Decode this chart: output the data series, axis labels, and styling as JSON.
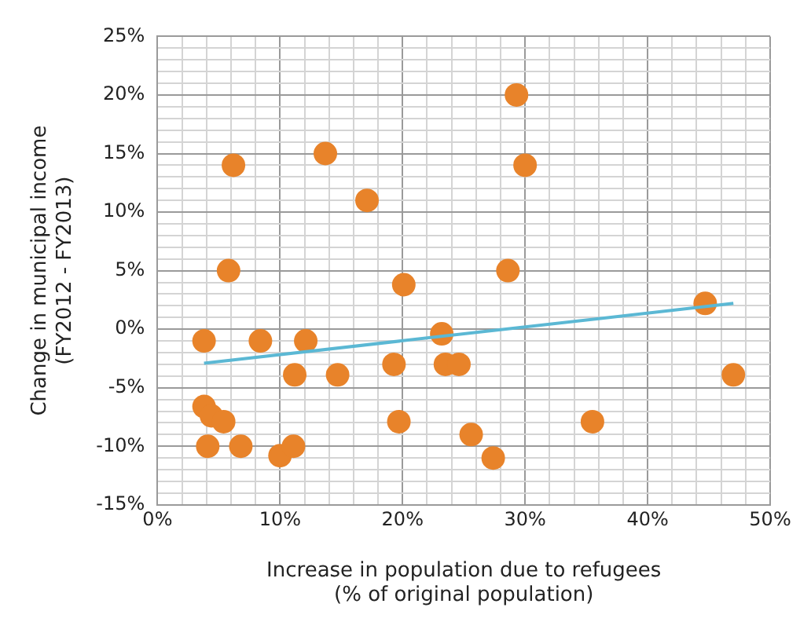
{
  "chart_data": {
    "type": "scatter",
    "xlabel": "Increase in population due to refugees\n(% of original population)",
    "ylabel": "Change in municipal income\n(FY2012 - FY2013)",
    "xlim": [
      0,
      50
    ],
    "ylim": [
      -15,
      25
    ],
    "xticks": [
      {
        "value": 0,
        "label": "0%"
      },
      {
        "value": 2,
        "label": null
      },
      {
        "value": 4,
        "label": null
      },
      {
        "value": 6,
        "label": null
      },
      {
        "value": 8,
        "label": null
      },
      {
        "value": 10,
        "label": "10%"
      },
      {
        "value": 12,
        "label": null
      },
      {
        "value": 14,
        "label": null
      },
      {
        "value": 16,
        "label": null
      },
      {
        "value": 18,
        "label": null
      },
      {
        "value": 20,
        "label": "20%"
      },
      {
        "value": 22,
        "label": null
      },
      {
        "value": 24,
        "label": null
      },
      {
        "value": 26,
        "label": null
      },
      {
        "value": 28,
        "label": null
      },
      {
        "value": 30,
        "label": "30%"
      },
      {
        "value": 32,
        "label": null
      },
      {
        "value": 34,
        "label": null
      },
      {
        "value": 36,
        "label": null
      },
      {
        "value": 38,
        "label": null
      },
      {
        "value": 40,
        "label": "40%"
      },
      {
        "value": 42,
        "label": null
      },
      {
        "value": 44,
        "label": null
      },
      {
        "value": 46,
        "label": null
      },
      {
        "value": 48,
        "label": null
      },
      {
        "value": 50,
        "label": "50%"
      }
    ],
    "yticks": [
      {
        "value": -15,
        "label": "-15%"
      },
      {
        "value": -14,
        "label": null
      },
      {
        "value": -13,
        "label": null
      },
      {
        "value": -12,
        "label": null
      },
      {
        "value": -11,
        "label": null
      },
      {
        "value": -10,
        "label": "-10%"
      },
      {
        "value": -9,
        "label": null
      },
      {
        "value": -8,
        "label": null
      },
      {
        "value": -7,
        "label": null
      },
      {
        "value": -6,
        "label": null
      },
      {
        "value": -5,
        "label": "-5%"
      },
      {
        "value": -4,
        "label": null
      },
      {
        "value": -3,
        "label": null
      },
      {
        "value": -2,
        "label": null
      },
      {
        "value": -1,
        "label": null
      },
      {
        "value": 0,
        "label": "0%"
      },
      {
        "value": 1,
        "label": null
      },
      {
        "value": 2,
        "label": null
      },
      {
        "value": 3,
        "label": null
      },
      {
        "value": 4,
        "label": null
      },
      {
        "value": 5,
        "label": "5%"
      },
      {
        "value": 6,
        "label": null
      },
      {
        "value": 7,
        "label": null
      },
      {
        "value": 8,
        "label": null
      },
      {
        "value": 9,
        "label": null
      },
      {
        "value": 10,
        "label": "10%"
      },
      {
        "value": 11,
        "label": null
      },
      {
        "value": 12,
        "label": null
      },
      {
        "value": 13,
        "label": null
      },
      {
        "value": 14,
        "label": null
      },
      {
        "value": 15,
        "label": "15%"
      },
      {
        "value": 16,
        "label": null
      },
      {
        "value": 17,
        "label": null
      },
      {
        "value": 18,
        "label": null
      },
      {
        "value": 19,
        "label": null
      },
      {
        "value": 20,
        "label": "20%"
      },
      {
        "value": 21,
        "label": null
      },
      {
        "value": 22,
        "label": null
      },
      {
        "value": 23,
        "label": null
      },
      {
        "value": 24,
        "label": null
      },
      {
        "value": 25,
        "label": "25%"
      }
    ],
    "grid": true,
    "marker": "circle",
    "series": [
      {
        "color": "#e8832a",
        "x": [
          3.8,
          6.2,
          13.7,
          17.1,
          5.8,
          20.1,
          8.4,
          12.1,
          11.2,
          14.7,
          19.3,
          19.7,
          3.8,
          4.4,
          5.4,
          4.1,
          6.8,
          10,
          11.1,
          23.2,
          23.5,
          24.6,
          25.6,
          29.3,
          30,
          28.6,
          44.7,
          47,
          35.5,
          27.4
        ],
        "values": [
          -1,
          14,
          15,
          11,
          5,
          3.8,
          -1,
          -1,
          -3.9,
          -3.9,
          -3,
          -7.9,
          -6.6,
          -7.4,
          -7.9,
          -10,
          -10,
          -10.8,
          -10,
          -0.4,
          -3,
          -3,
          -9,
          20,
          14,
          5,
          2.2,
          -3.9,
          -7.9,
          -11
        ]
      },
      {
        "type": "line",
        "color": "#5bb8d4",
        "marker": "none",
        "x": [
          3.8,
          47
        ],
        "values": [
          -2.9,
          2.2
        ]
      }
    ]
  }
}
